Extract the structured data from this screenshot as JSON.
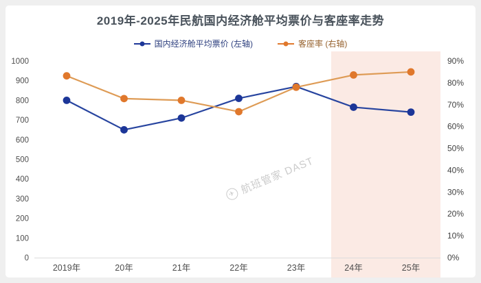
{
  "theme": {
    "outer_background": "#efefef",
    "card_background": "#ffffff",
    "title_color": "#49525b",
    "watermark_color": "#cbcbcb"
  },
  "watermark": {
    "icon": "flight-manager-logo",
    "text": "航班管家 DAST"
  },
  "legend": {
    "items": [
      {
        "text_color": "#2d3f7e"
      },
      {
        "text_color": "#96622e"
      }
    ]
  },
  "chart_data": {
    "type": "line",
    "title": "2019年-2025年民航国内经济舱平均票价与客座率走势",
    "categories": [
      "2019年",
      "20年",
      "21年",
      "22年",
      "23年",
      "24年",
      "25年"
    ],
    "series": [
      {
        "name": "国内经济舱平均票价 (左轴)",
        "axis": "left",
        "line_color": "#27449f",
        "marker_color": "#1c3698",
        "values": [
          800,
          650,
          710,
          810,
          870,
          765,
          740
        ]
      },
      {
        "name": "客座率 (右轴)",
        "axis": "right",
        "line_color": "#de9b55",
        "marker_color": "#e0782c",
        "values": [
          83.2,
          72.8,
          72,
          66.8,
          78,
          83.6,
          85
        ]
      }
    ],
    "left_axis": {
      "min": 0,
      "max": 1000,
      "tick_labels": [
        "1000",
        "900",
        "800",
        "700",
        "600",
        "500",
        "400",
        "300",
        "200",
        "100",
        "0"
      ],
      "color": "#4d4d4d"
    },
    "right_axis": {
      "min": 0,
      "max": 90,
      "tick_labels": [
        "90%",
        "80%",
        "70%",
        "60%",
        "50%",
        "40%",
        "30%",
        "20%",
        "10%",
        "0%"
      ],
      "color": "#3f3f3f"
    },
    "x_axis": {
      "color": "#4d4d4d",
      "line_color": "#dcdcdc"
    },
    "forecast_band": {
      "categories": [
        "24年",
        "25年"
      ],
      "color": "#fbeae4"
    },
    "grid": false,
    "legend_position": "top"
  }
}
